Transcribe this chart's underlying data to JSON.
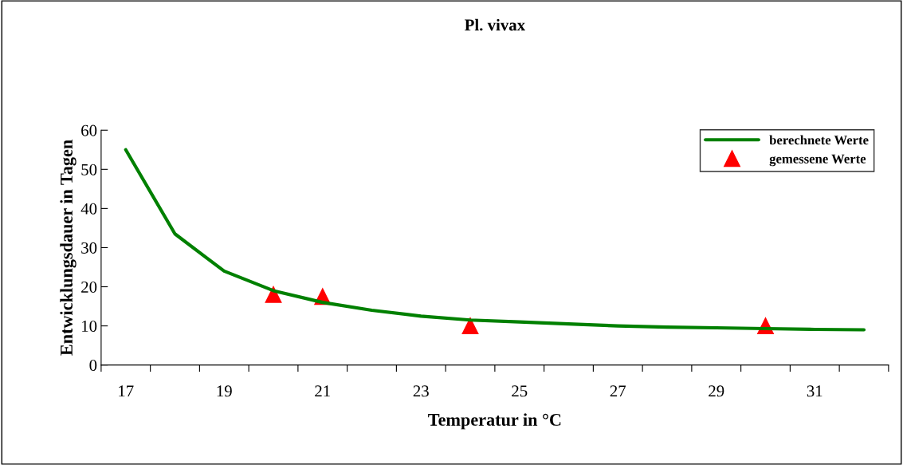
{
  "chart_data": {
    "type": "line",
    "title": "Pl. vivax",
    "xlabel": "Temperatur in °C",
    "ylabel": "Entwicklungsdauer in Tagen",
    "xlim": [
      16.5,
      32.5
    ],
    "xticks": [
      {
        "value": 16.5,
        "label": null
      },
      17,
      {
        "value": 17.5,
        "label": null
      },
      {
        "value": 18.5,
        "label": null
      },
      19,
      {
        "value": 19.5,
        "label": null
      },
      {
        "value": 20.5,
        "label": null
      },
      21,
      {
        "value": 21.5,
        "label": null
      },
      {
        "value": 22.5,
        "label": null
      },
      23,
      {
        "value": 23.5,
        "label": null
      },
      {
        "value": 24.5,
        "label": null
      },
      25,
      {
        "value": 25.5,
        "label": null
      },
      {
        "value": 26.5,
        "label": null
      },
      27,
      {
        "value": 27.5,
        "label": null
      },
      {
        "value": 28.5,
        "label": null
      },
      29,
      {
        "value": 29.5,
        "label": null
      },
      {
        "value": 30.5,
        "label": null
      },
      31,
      {
        "value": 31.5,
        "label": null
      },
      {
        "value": 32.5,
        "label": null
      }
    ],
    "ylim": [
      0,
      60
    ],
    "yticks": [
      0,
      10,
      20,
      30,
      40,
      50,
      60
    ],
    "grid": false,
    "legend": "top right",
    "series": [
      {
        "name": "berechnete Werte",
        "type": "line",
        "color": "#008000",
        "marker": "none",
        "line_style": "solid",
        "x": [
          17,
          18,
          19,
          20,
          21,
          22,
          23,
          24,
          25,
          26,
          27,
          28,
          29,
          30,
          31,
          32
        ],
        "values": [
          55,
          33.5,
          24,
          19,
          16,
          14,
          12.5,
          11.5,
          11,
          10.5,
          10,
          9.7,
          9.5,
          9.3,
          9.1,
          9
        ]
      },
      {
        "name": "gemessene Werte",
        "type": "scatter",
        "color": "#ff0000",
        "marker": "triangle",
        "x": [
          20,
          21,
          24,
          30
        ],
        "values": [
          18,
          17.5,
          10,
          10
        ]
      }
    ]
  }
}
